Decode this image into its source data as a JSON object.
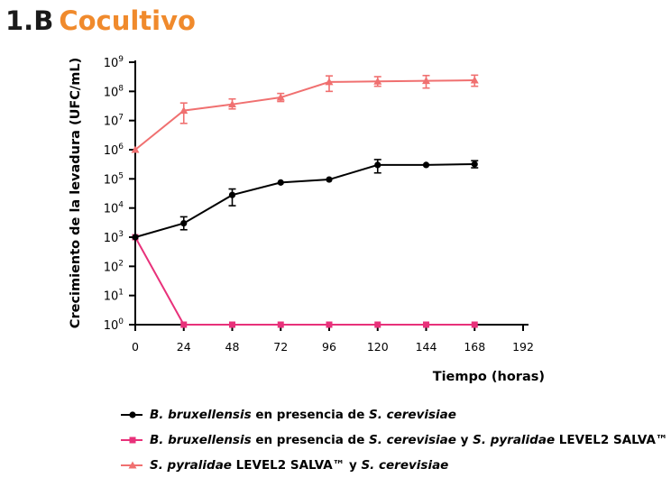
{
  "heading": {
    "number": "1.B",
    "title": "Cocultivo"
  },
  "chart_data": {
    "type": "line",
    "title": "Cocultivo",
    "xlabel": "Tiempo (horas)",
    "ylabel": "Crecimiento de la levadura (UFC/mL)",
    "x_ticks": [
      0,
      24,
      48,
      72,
      96,
      120,
      144,
      168,
      192
    ],
    "xlim": [
      0,
      192
    ],
    "y_scale": "log",
    "y_tick_exponents": [
      0,
      1,
      2,
      3,
      4,
      5,
      6,
      7,
      8,
      9
    ],
    "y_tick_base": "10",
    "ylim": [
      1,
      1000000000
    ],
    "grid": false,
    "legend_position": "bottom",
    "series": [
      {
        "key": "black",
        "color": "#000000",
        "marker": "circle",
        "legend": [
          "B. bruxellensis",
          " en presencia de ",
          "S. cerevisiae",
          "",
          "",
          ""
        ],
        "x": [
          0,
          24,
          48,
          72,
          96,
          120,
          144,
          168
        ],
        "y": [
          1000,
          3000,
          28000,
          75000,
          95000,
          300000,
          300000,
          320000
        ],
        "err_low": [
          1000,
          1800,
          12000,
          75000,
          95000,
          160000,
          300000,
          240000
        ],
        "err_high": [
          1000,
          5000,
          45000,
          75000,
          95000,
          460000,
          300000,
          420000
        ]
      },
      {
        "key": "magenta",
        "color": "#e8317a",
        "marker": "square",
        "legend": [
          "B. bruxellensis",
          " en presencia de ",
          "S. cerevisiae",
          " y ",
          "S. pyralidae",
          " LEVEL2 SALVA™"
        ],
        "x": [
          0,
          24,
          48,
          72,
          96,
          120,
          144,
          168
        ],
        "y": [
          1000,
          1,
          1,
          1,
          1,
          1,
          1,
          1
        ],
        "err_low": [
          1000,
          1,
          1,
          1,
          1,
          1,
          1,
          1
        ],
        "err_high": [
          1000,
          1,
          1,
          1,
          1,
          1,
          1,
          1
        ]
      },
      {
        "key": "salmon",
        "color": "#f07070",
        "marker": "triangle",
        "legend": [
          "S. pyralidae",
          "  LEVEL2 SALVA™ y ",
          "S. cerevisiae",
          "",
          "",
          ""
        ],
        "x": [
          0,
          24,
          48,
          72,
          96,
          120,
          144,
          168
        ],
        "y": [
          1000000,
          22000000,
          36000000,
          62000000,
          210000000,
          220000000,
          230000000,
          240000000
        ],
        "err_low": [
          1000000,
          8000000,
          25000000,
          45000000,
          100000000,
          150000000,
          130000000,
          150000000
        ],
        "err_high": [
          1000000,
          40000000,
          55000000,
          85000000,
          340000000,
          320000000,
          350000000,
          360000000
        ]
      }
    ]
  }
}
